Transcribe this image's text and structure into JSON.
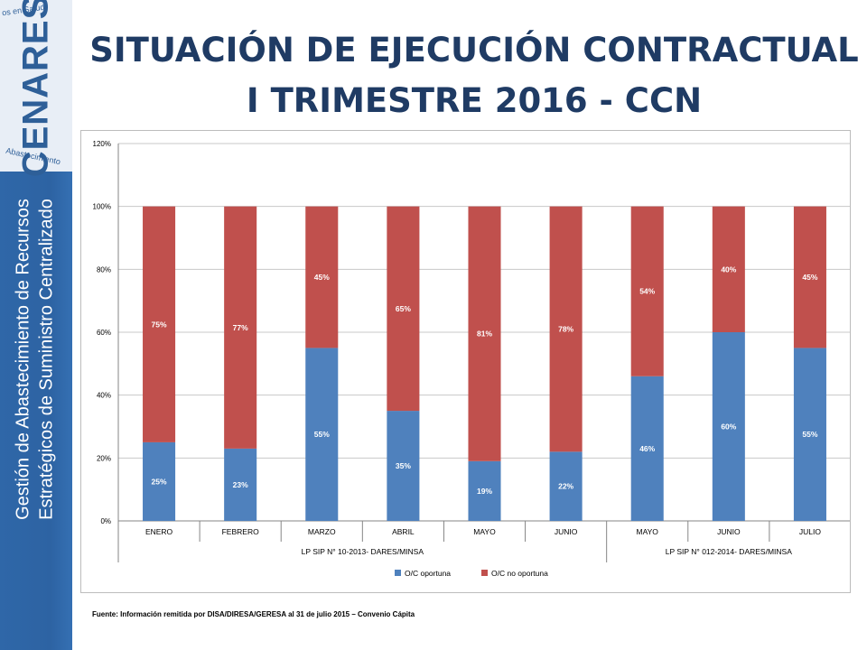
{
  "title": {
    "line1": "SITUACIÓN DE EJECUCIÓN CONTRACTUAL",
    "line2": "I TRIMESTRE 2016 - CCN"
  },
  "sidebar": {
    "logo_text": "CENARES",
    "arc_top": "os en Salud",
    "arc_bottom": "Abastecimiento",
    "line1": "Gestión de Abastecimiento de Recursos",
    "line2": "Estratégicos de Suministro Centralizado",
    "colors": {
      "panel": "#2f67a8"
    }
  },
  "source_note": "Fuente: Información remitida por DISA/DIRESA/GERESA al 31 de julio 2015 – Convenio Cápita",
  "chart_data": {
    "type": "bar",
    "stacked": true,
    "percent_stacked": true,
    "categories": [
      "ENERO",
      "FEBRERO",
      "MARZO",
      "ABRIL",
      "MAYO",
      "JUNIO",
      "MAYO",
      "JUNIO",
      "JULIO"
    ],
    "groups": [
      {
        "label": "LP SIP N° 10-2013- DARES/MINSA",
        "count": 6
      },
      {
        "label": "LP SIP N° 012-2014- DARES/MINSA",
        "count": 3
      }
    ],
    "series": [
      {
        "name": "O/C oportuna",
        "color": "#4f81bd",
        "values": [
          25,
          23,
          55,
          35,
          19,
          22,
          46,
          60,
          55
        ],
        "labels": [
          "25%",
          "23%",
          "55%",
          "35%",
          "19%",
          "22%",
          "46%",
          "60%",
          "55%"
        ]
      },
      {
        "name": "O/C no oportuna",
        "color": "#c0504d",
        "values": [
          75,
          77,
          45,
          65,
          81,
          78,
          54,
          40,
          45
        ],
        "labels": [
          "75%",
          "77%",
          "45%",
          "65%",
          "81%",
          "78%",
          "54%",
          "40%",
          "45%"
        ]
      }
    ],
    "ylim": [
      0,
      120
    ],
    "yticks": [
      0,
      20,
      40,
      60,
      80,
      100,
      120
    ],
    "ytick_labels": [
      "0%",
      "20%",
      "40%",
      "60%",
      "80%",
      "100%",
      "120%"
    ],
    "grid": true,
    "legend_position": "bottom"
  }
}
